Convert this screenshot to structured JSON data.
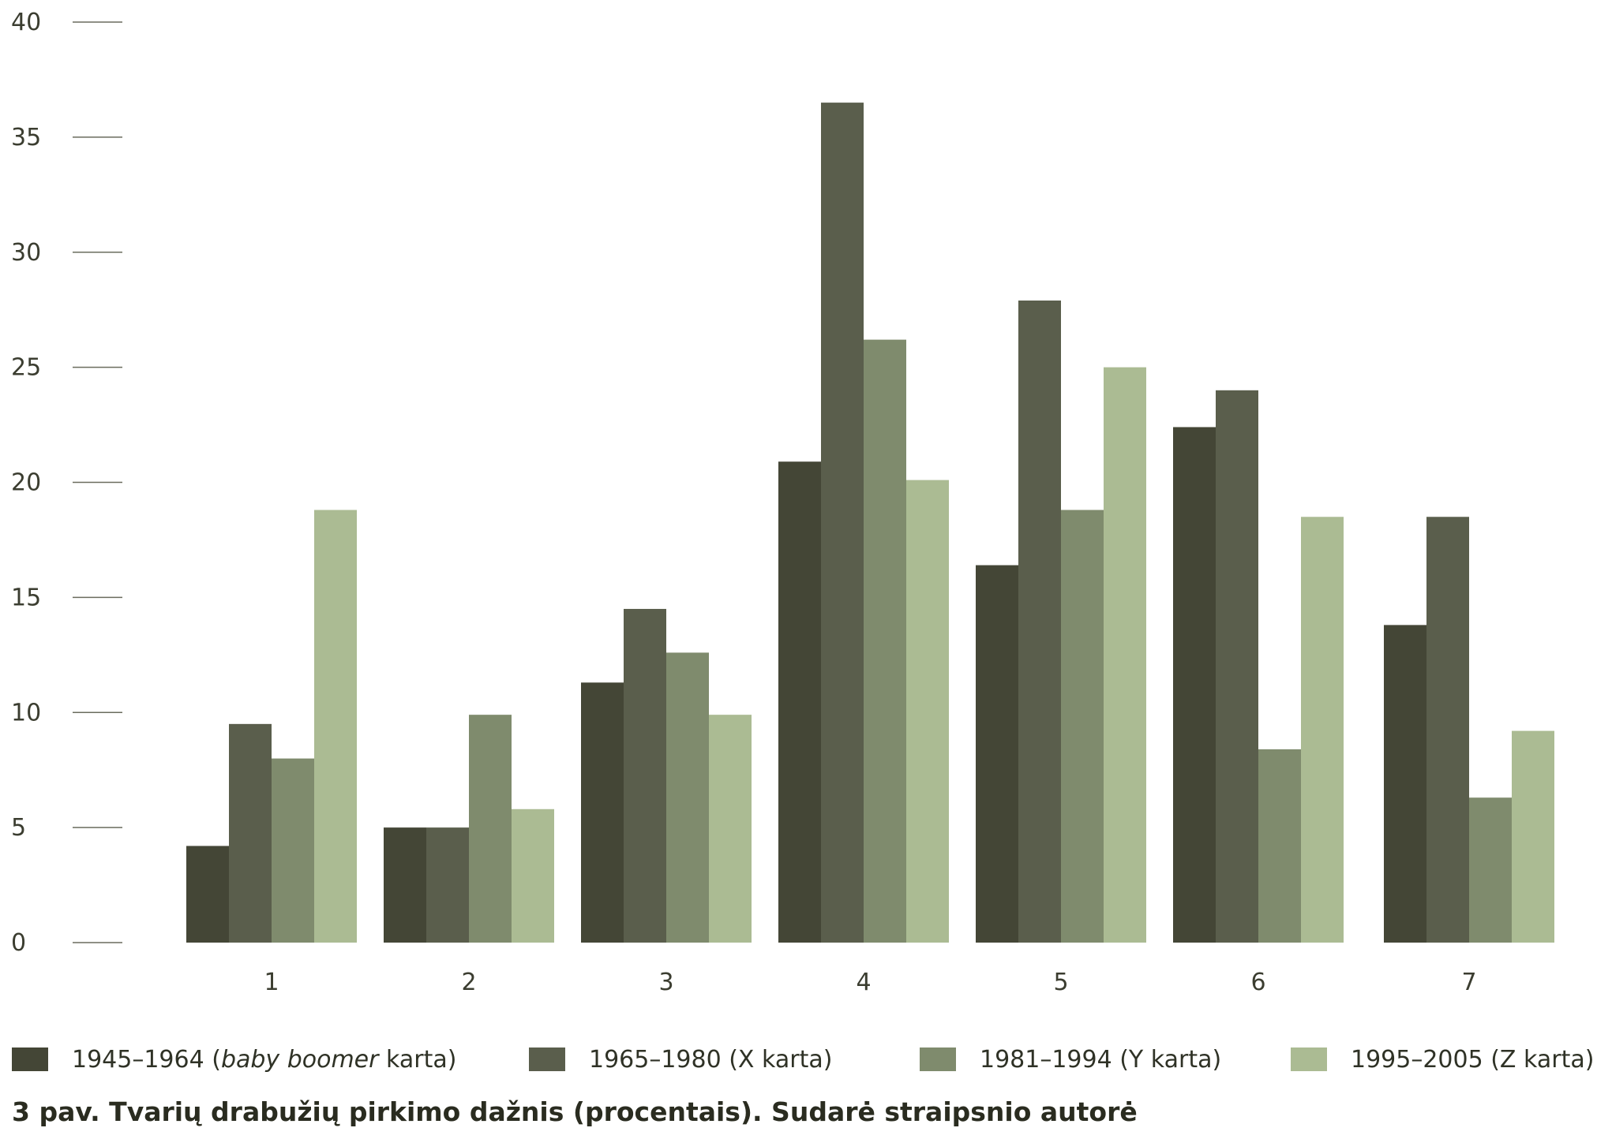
{
  "chart_data": {
    "type": "bar",
    "categories": [
      "1",
      "2",
      "3",
      "4",
      "5",
      "6",
      "7"
    ],
    "series": [
      {
        "name": "1945–1964 (baby boomer karta)",
        "color": "#444636",
        "values": [
          4.2,
          5.0,
          11.3,
          20.9,
          16.4,
          22.4,
          13.8
        ]
      },
      {
        "name": "1965–1980 (X karta)",
        "color": "#5a5e4c",
        "values": [
          9.5,
          5.0,
          14.5,
          36.5,
          27.9,
          24.0,
          18.5
        ]
      },
      {
        "name": "1981–1994 (Y karta)",
        "color": "#7f8b6d",
        "values": [
          8.0,
          9.9,
          12.6,
          26.2,
          18.8,
          8.4,
          6.3
        ]
      },
      {
        "name": "1995–2005 (Z karta)",
        "color": "#abbb93",
        "values": [
          18.8,
          5.8,
          9.9,
          20.1,
          25.0,
          18.5,
          9.2
        ]
      }
    ],
    "ylim": [
      0,
      40
    ],
    "yticks": [
      0,
      5,
      10,
      15,
      20,
      25,
      30,
      35,
      40
    ],
    "grid": false,
    "legend_position": "bottom"
  },
  "legend": {
    "items": [
      {
        "prefix": "1945–1964 (",
        "italic": "baby boomer",
        "suffix": " karta)"
      },
      {
        "prefix": "1965–1980 (X karta)",
        "italic": "",
        "suffix": ""
      },
      {
        "prefix": "1981–1994 (Y karta)",
        "italic": "",
        "suffix": ""
      },
      {
        "prefix": "1995–2005 (Z karta)",
        "italic": "",
        "suffix": ""
      }
    ]
  },
  "caption": "3 pav. Tvarių drabužių pirkimo dažnis (procentais).  Sudarė straipsnio autorė"
}
